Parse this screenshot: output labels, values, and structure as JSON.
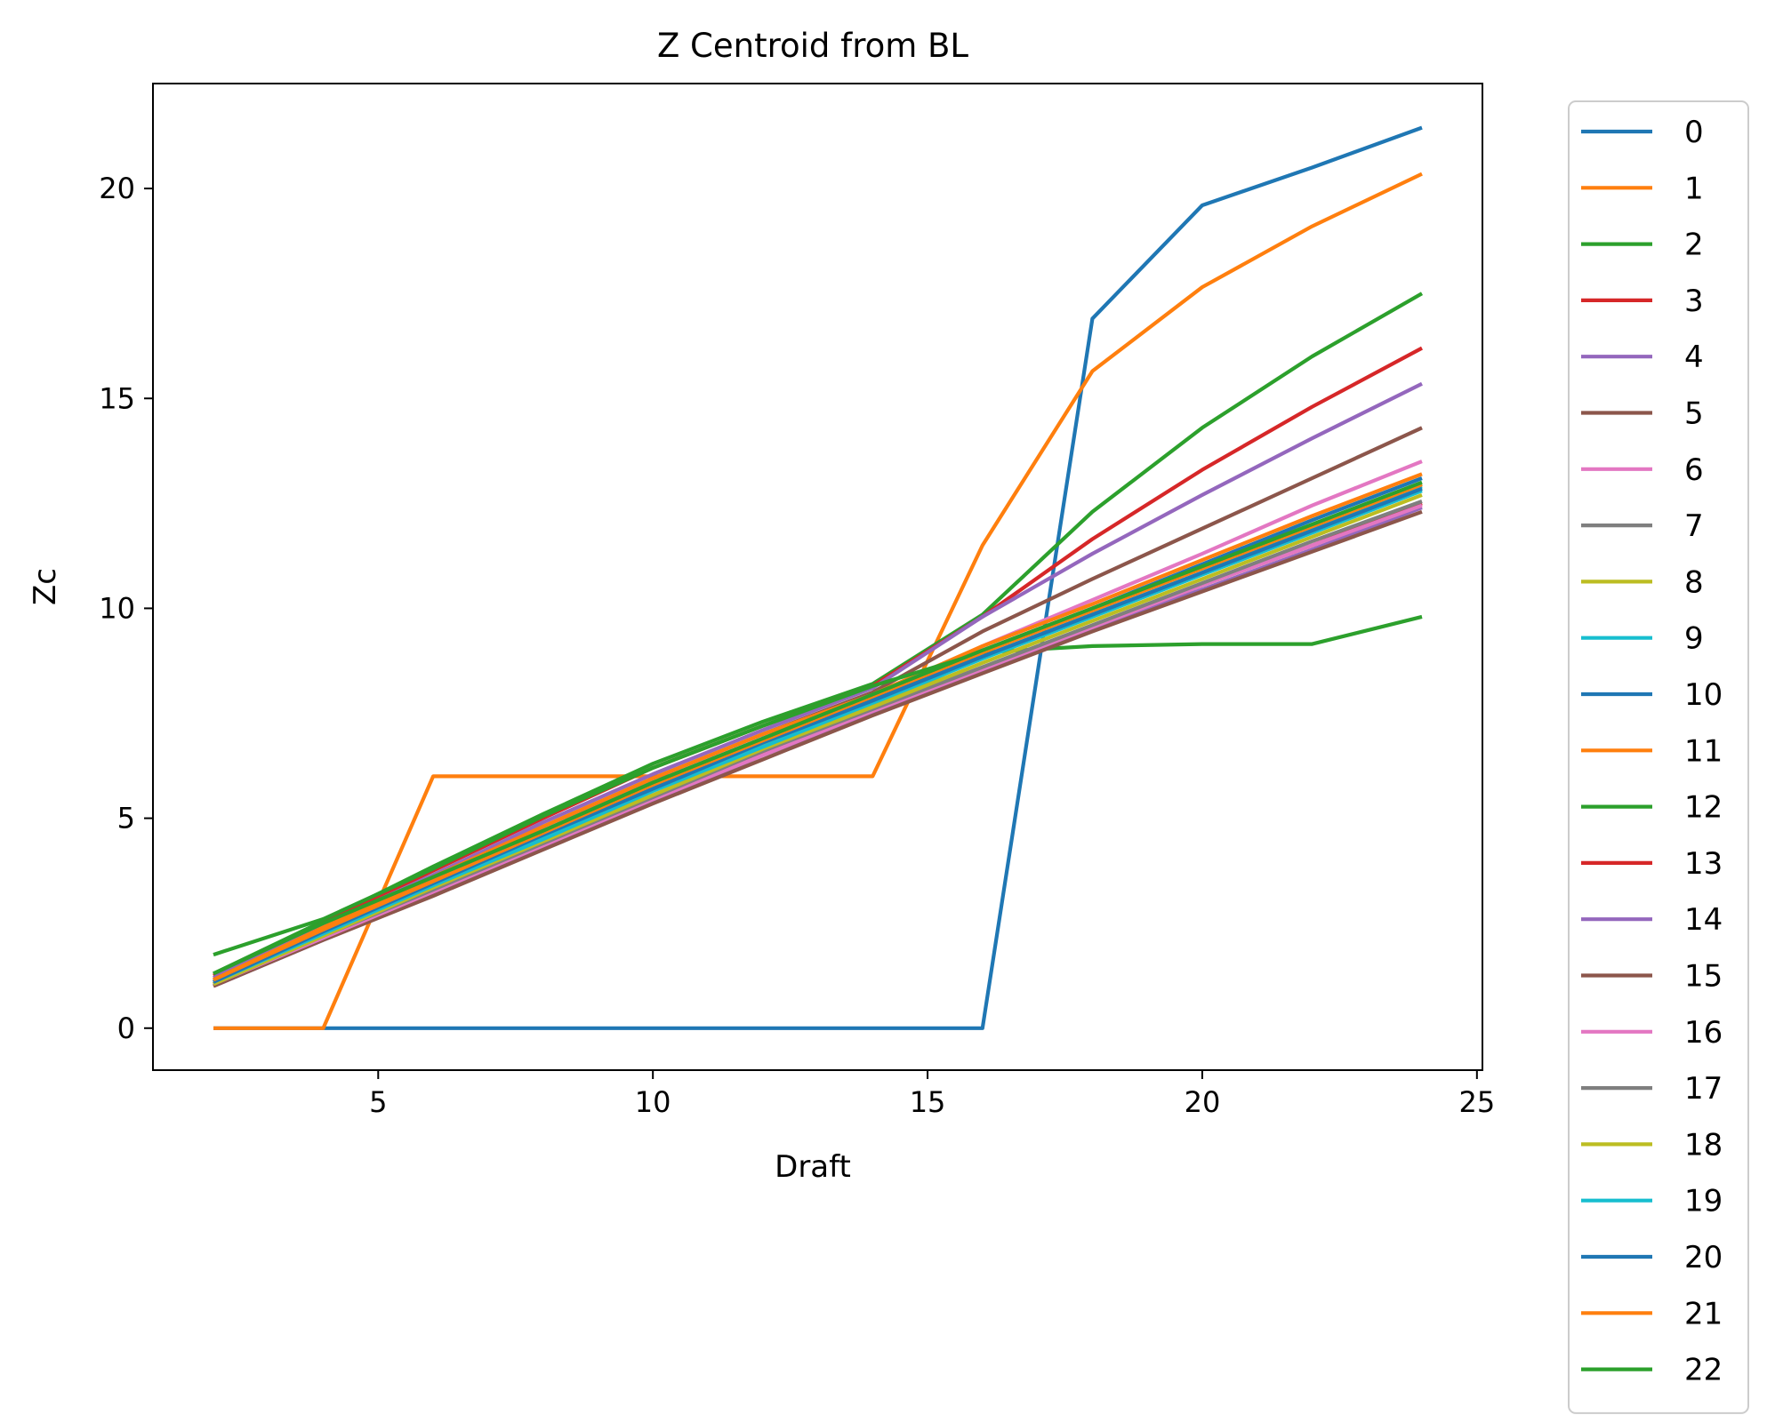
{
  "chart_data": {
    "type": "line",
    "title": "Z Centroid from BL",
    "xlabel": "Draft",
    "ylabel": "Zc",
    "xlim": [
      0.9,
      25.1
    ],
    "ylim": [
      -1.0,
      22.5
    ],
    "xticks": [
      5,
      10,
      15,
      20,
      25
    ],
    "yticks": [
      0,
      5,
      10,
      15,
      20
    ],
    "grid": false,
    "legend_position": "outside-right",
    "x": [
      2,
      4,
      6,
      8,
      10,
      12,
      14,
      16,
      18,
      20,
      22,
      24
    ],
    "series": [
      {
        "name": "0",
        "color": "#1f77b4",
        "values": [
          0,
          0,
          0,
          0,
          0,
          0,
          0,
          0,
          16.9,
          19.6,
          20.5,
          21.45
        ]
      },
      {
        "name": "1",
        "color": "#ff7f0e",
        "values": [
          0,
          0,
          6.0,
          6.0,
          6.0,
          6.0,
          6.0,
          11.5,
          15.65,
          17.65,
          19.1,
          20.35
        ]
      },
      {
        "name": "2",
        "color": "#2ca02c",
        "values": [
          1.3,
          2.55,
          3.85,
          5.1,
          6.3,
          7.3,
          8.2,
          9.85,
          12.3,
          14.3,
          16.0,
          17.5
        ]
      },
      {
        "name": "3",
        "color": "#d62728",
        "values": [
          1.25,
          2.5,
          3.75,
          5.0,
          6.2,
          7.2,
          8.15,
          9.8,
          11.65,
          13.3,
          14.8,
          16.2
        ]
      },
      {
        "name": "4",
        "color": "#9467bd",
        "values": [
          1.2,
          2.45,
          3.65,
          4.9,
          6.05,
          7.1,
          8.1,
          9.8,
          11.3,
          12.7,
          14.05,
          15.35
        ]
      },
      {
        "name": "5",
        "color": "#8c564b",
        "values": [
          1.15,
          2.35,
          3.55,
          4.8,
          5.95,
          7.0,
          8.0,
          9.45,
          10.7,
          11.9,
          13.1,
          14.3
        ]
      },
      {
        "name": "6",
        "color": "#e377c2",
        "values": [
          1.1,
          2.3,
          3.5,
          4.7,
          5.85,
          6.9,
          7.85,
          9.1,
          10.2,
          11.3,
          12.45,
          13.5
        ]
      },
      {
        "name": "7",
        "color": "#7f7f7f",
        "values": [
          1.1,
          2.25,
          3.45,
          4.6,
          5.75,
          6.8,
          7.75,
          8.95,
          9.95,
          10.95,
          11.95,
          12.95
        ]
      },
      {
        "name": "8",
        "color": "#bcbd22",
        "values": [
          1.05,
          2.25,
          3.4,
          4.55,
          5.7,
          6.75,
          7.7,
          8.85,
          9.85,
          10.85,
          11.85,
          12.85
        ]
      },
      {
        "name": "9",
        "color": "#17becf",
        "values": [
          1.05,
          2.2,
          3.4,
          4.55,
          5.7,
          6.7,
          7.65,
          8.85,
          9.85,
          10.85,
          11.9,
          12.9
        ]
      },
      {
        "name": "10",
        "color": "#1f77b4",
        "values": [
          1.1,
          2.3,
          3.5,
          4.7,
          5.85,
          6.9,
          7.85,
          9.0,
          10.0,
          11.05,
          12.1,
          13.1
        ]
      },
      {
        "name": "11",
        "color": "#ff7f0e",
        "values": [
          1.15,
          2.4,
          3.6,
          4.8,
          5.95,
          7.0,
          7.95,
          9.1,
          10.1,
          11.15,
          12.2,
          13.2
        ]
      },
      {
        "name": "12",
        "color": "#2ca02c",
        "values": [
          1.75,
          2.6,
          3.8,
          5.05,
          6.2,
          7.2,
          8.15,
          8.95,
          9.1,
          9.15,
          9.15,
          9.8
        ]
      },
      {
        "name": "13",
        "color": "#d62728",
        "values": [
          1.05,
          2.15,
          3.25,
          4.35,
          5.45,
          6.55,
          7.55,
          8.55,
          9.55,
          10.55,
          11.5,
          12.5
        ]
      },
      {
        "name": "14",
        "color": "#9467bd",
        "values": [
          1.0,
          2.1,
          3.2,
          4.3,
          5.4,
          6.5,
          7.5,
          8.5,
          9.5,
          10.45,
          11.4,
          12.4
        ]
      },
      {
        "name": "15",
        "color": "#8c564b",
        "values": [
          1.0,
          2.1,
          3.15,
          4.25,
          5.35,
          6.4,
          7.45,
          8.45,
          9.45,
          10.4,
          11.35,
          12.3
        ]
      },
      {
        "name": "16",
        "color": "#e377c2",
        "values": [
          1.05,
          2.15,
          3.25,
          4.35,
          5.45,
          6.5,
          7.55,
          8.55,
          9.55,
          10.55,
          11.5,
          12.45
        ]
      },
      {
        "name": "17",
        "color": "#7f7f7f",
        "values": [
          1.05,
          2.2,
          3.3,
          4.4,
          5.5,
          6.6,
          7.6,
          8.6,
          9.6,
          10.6,
          11.6,
          12.55
        ]
      },
      {
        "name": "18",
        "color": "#bcbd22",
        "values": [
          1.05,
          2.2,
          3.35,
          4.45,
          5.55,
          6.65,
          7.65,
          8.7,
          9.7,
          10.7,
          11.7,
          12.7
        ]
      },
      {
        "name": "19",
        "color": "#17becf",
        "values": [
          1.1,
          2.25,
          3.4,
          4.5,
          5.65,
          6.7,
          7.75,
          8.8,
          9.8,
          10.8,
          11.8,
          12.8
        ]
      },
      {
        "name": "20",
        "color": "#1f77b4",
        "values": [
          1.1,
          2.3,
          3.45,
          4.6,
          5.7,
          6.8,
          7.8,
          8.85,
          9.85,
          10.85,
          11.85,
          12.85
        ]
      },
      {
        "name": "21",
        "color": "#ff7f0e",
        "values": [
          1.15,
          2.35,
          3.5,
          4.65,
          5.8,
          6.85,
          7.9,
          8.95,
          9.95,
          10.95,
          11.95,
          12.95
        ]
      },
      {
        "name": "22",
        "color": "#2ca02c",
        "values": [
          1.3,
          2.5,
          3.6,
          4.7,
          5.85,
          6.9,
          7.95,
          9.0,
          10.0,
          11.0,
          12.0,
          13.0
        ]
      }
    ]
  }
}
